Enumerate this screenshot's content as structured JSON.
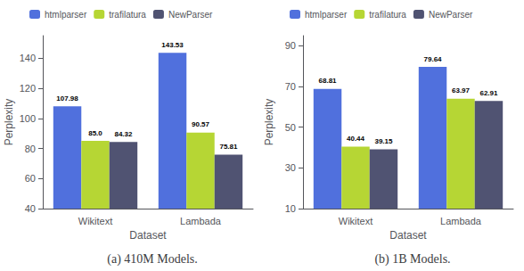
{
  "chart_data": [
    {
      "type": "bar",
      "title": "(a) 410M Models.",
      "xlabel": "Dataset",
      "ylabel": "Perplexity",
      "categories": [
        "Wikitext",
        "Lambada"
      ],
      "series": [
        {
          "name": "htmlparser",
          "values": [
            107.98,
            143.53
          ]
        },
        {
          "name": "trafilatura",
          "values": [
            85.0,
            90.57
          ],
          "value_labels": [
            "85.0",
            "90.57"
          ]
        },
        {
          "name": "NewParser",
          "values": [
            84.32,
            75.81
          ]
        }
      ],
      "ylim": [
        40,
        155
      ],
      "yticks": [
        40,
        60,
        80,
        100,
        120,
        140
      ],
      "grid": false,
      "legend": "upper left",
      "data_labels": true
    },
    {
      "type": "bar",
      "title": "(b) 1B Models.",
      "xlabel": "Dataset",
      "ylabel": "Perplexity",
      "categories": [
        "Wikitext",
        "Lambada"
      ],
      "series": [
        {
          "name": "htmlparser",
          "values": [
            68.81,
            79.64
          ]
        },
        {
          "name": "trafilatura",
          "values": [
            40.44,
            63.97
          ]
        },
        {
          "name": "NewParser",
          "values": [
            39.15,
            62.91
          ]
        }
      ],
      "ylim": [
        10,
        95
      ],
      "yticks": [
        10,
        30,
        50,
        70,
        90
      ],
      "grid": false,
      "legend": "upper left",
      "data_labels": true
    }
  ]
}
